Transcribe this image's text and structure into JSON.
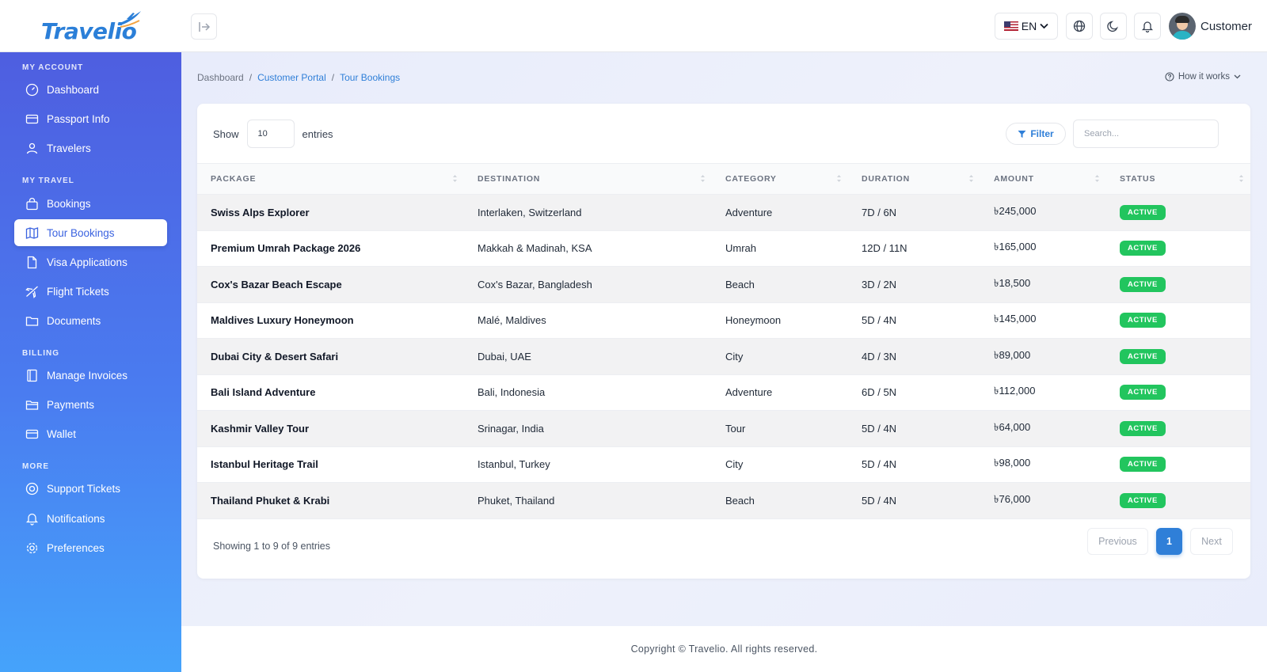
{
  "app": {
    "brand": "Travelio"
  },
  "topbar": {
    "language": "EN",
    "user_name": "Customer"
  },
  "sidebar": {
    "sections": [
      {
        "title": "MY ACCOUNT",
        "items": [
          {
            "label": "Dashboard",
            "icon": "gauge-icon"
          },
          {
            "label": "Passport Info",
            "icon": "card-icon"
          },
          {
            "label": "Travelers",
            "icon": "users-icon"
          }
        ]
      },
      {
        "title": "MY TRAVEL",
        "items": [
          {
            "label": "Bookings",
            "icon": "bag-icon"
          },
          {
            "label": "Tour Bookings",
            "icon": "map-icon",
            "active": true
          },
          {
            "label": "Visa Applications",
            "icon": "file-icon"
          },
          {
            "label": "Flight Tickets",
            "icon": "plane-icon"
          },
          {
            "label": "Documents",
            "icon": "folder-icon"
          }
        ]
      },
      {
        "title": "BILLING",
        "items": [
          {
            "label": "Manage Invoices",
            "icon": "invoice-icon"
          },
          {
            "label": "Payments",
            "icon": "wallet-folder-icon"
          },
          {
            "label": "Wallet",
            "icon": "wallet-icon"
          }
        ]
      },
      {
        "title": "MORE",
        "items": [
          {
            "label": "Support Tickets",
            "icon": "lifebuoy-icon"
          },
          {
            "label": "Notifications",
            "icon": "bell-icon"
          },
          {
            "label": "Preferences",
            "icon": "gear-icon"
          }
        ]
      }
    ]
  },
  "breadcrumb": {
    "items": [
      "Dashboard",
      "Customer Portal",
      "Tour Bookings"
    ],
    "separator": "/"
  },
  "help": {
    "label": "How it works"
  },
  "table_controls": {
    "show_label": "Show",
    "entries_value": "10",
    "entries_label": "entries",
    "filter_label": "Filter",
    "search_placeholder": "Search..."
  },
  "table": {
    "columns": [
      "PACKAGE",
      "DESTINATION",
      "CATEGORY",
      "DURATION",
      "AMOUNT",
      "STATUS"
    ],
    "rows": [
      {
        "package": "Swiss Alps Explorer",
        "destination": "Interlaken, Switzerland",
        "category": "Adventure",
        "duration": "7D / 6N",
        "amount": "৳245,000",
        "status": "ACTIVE"
      },
      {
        "package": "Premium Umrah Package 2026",
        "destination": "Makkah & Madinah, KSA",
        "category": "Umrah",
        "duration": "12D / 11N",
        "amount": "৳165,000",
        "status": "ACTIVE"
      },
      {
        "package": "Cox's Bazar Beach Escape",
        "destination": "Cox's Bazar, Bangladesh",
        "category": "Beach",
        "duration": "3D / 2N",
        "amount": "৳18,500",
        "status": "ACTIVE"
      },
      {
        "package": "Maldives Luxury Honeymoon",
        "destination": "Malé, Maldives",
        "category": "Honeymoon",
        "duration": "5D / 4N",
        "amount": "৳145,000",
        "status": "ACTIVE"
      },
      {
        "package": "Dubai City & Desert Safari",
        "destination": "Dubai, UAE",
        "category": "City",
        "duration": "4D / 3N",
        "amount": "৳89,000",
        "status": "ACTIVE"
      },
      {
        "package": "Bali Island Adventure",
        "destination": "Bali, Indonesia",
        "category": "Adventure",
        "duration": "6D / 5N",
        "amount": "৳112,000",
        "status": "ACTIVE"
      },
      {
        "package": "Kashmir Valley Tour",
        "destination": "Srinagar, India",
        "category": "Tour",
        "duration": "5D / 4N",
        "amount": "৳64,000",
        "status": "ACTIVE"
      },
      {
        "package": "Istanbul Heritage Trail",
        "destination": "Istanbul, Turkey",
        "category": "City",
        "duration": "5D / 4N",
        "amount": "৳98,000",
        "status": "ACTIVE"
      },
      {
        "package": "Thailand Phuket & Krabi",
        "destination": "Phuket, Thailand",
        "category": "Beach",
        "duration": "5D / 4N",
        "amount": "৳76,000",
        "status": "ACTIVE"
      }
    ]
  },
  "pagination": {
    "summary": "Showing 1 to 9 of 9 entries",
    "previous": "Previous",
    "current": "1",
    "next": "Next"
  },
  "footer": {
    "text": "Copyright © Travelio. All rights reserved."
  },
  "colors": {
    "accent": "#2f7fd8",
    "status_active": "#22c55e",
    "sidebar_top": "#4e5ee0",
    "sidebar_bottom": "#45a3fb"
  }
}
